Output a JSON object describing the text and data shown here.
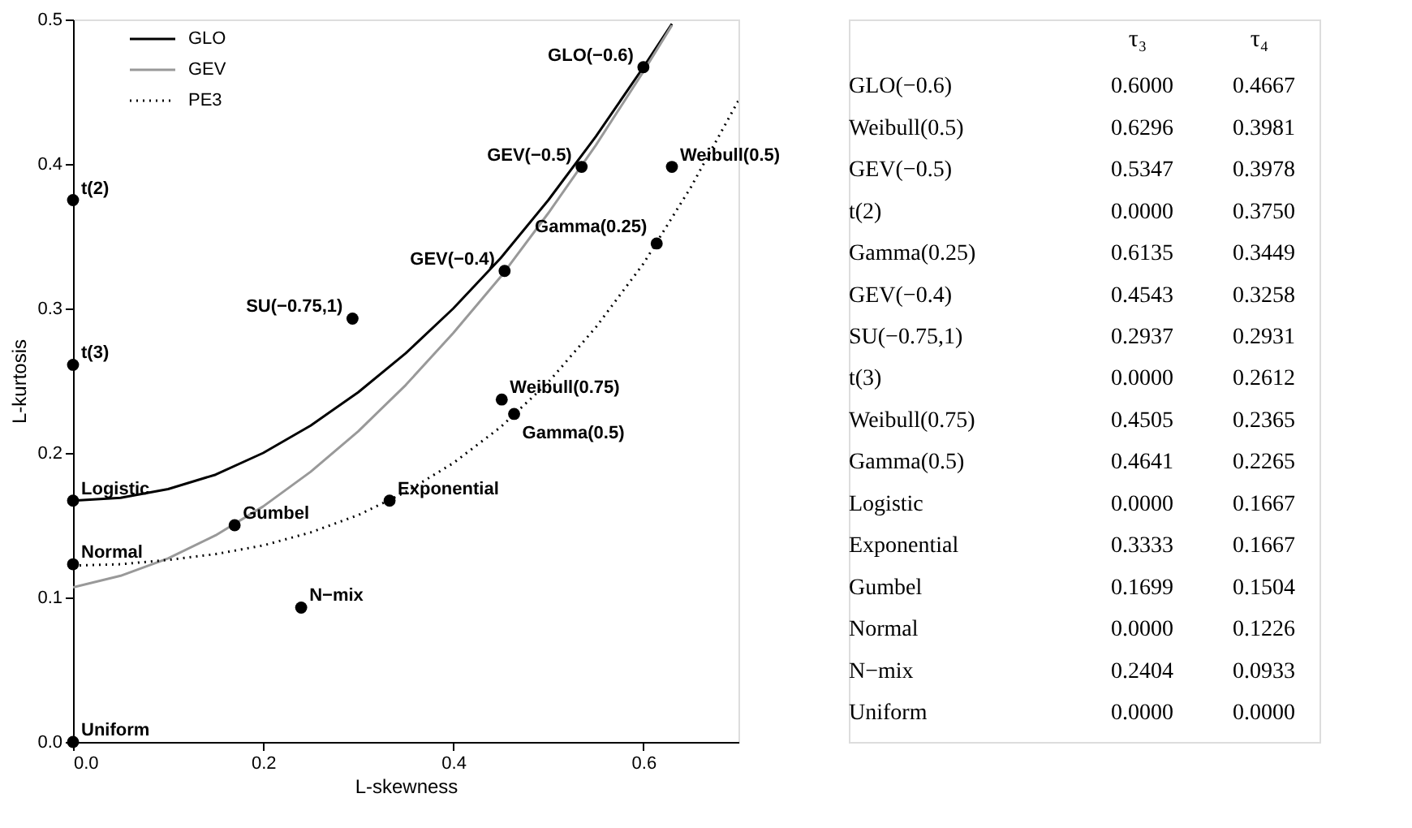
{
  "chart_data": [
    {
      "type": "scatter",
      "xlabel": "L-skewness",
      "ylabel": "L-kurtosis",
      "xlim": [
        0,
        0.7
      ],
      "ylim": [
        0,
        0.5
      ],
      "xticks": [
        {
          "value": 0,
          "label": "0.0"
        },
        0.2,
        0.4,
        0.6
      ],
      "yticks": [
        {
          "value": 0,
          "label": "0.0"
        },
        0.1,
        0.2,
        0.3,
        0.4,
        0.5
      ],
      "grid": false,
      "legend": "top left",
      "series": [
        {
          "name": "GLO",
          "type": "line",
          "color": "#000000",
          "line_style": "solid",
          "x": [
            0,
            0.05,
            0.1,
            0.15,
            0.2,
            0.25,
            0.3,
            0.35,
            0.4,
            0.45,
            0.5,
            0.55,
            0.6,
            0.63
          ],
          "values": [
            0.167,
            0.169,
            0.175,
            0.185,
            0.2,
            0.219,
            0.242,
            0.269,
            0.3,
            0.335,
            0.375,
            0.419,
            0.467,
            0.497
          ]
        },
        {
          "name": "GEV",
          "type": "line",
          "color": "#999999",
          "line_style": "solid",
          "x": [
            0,
            0.05,
            0.1,
            0.15,
            0.2,
            0.25,
            0.3,
            0.35,
            0.4,
            0.45,
            0.5,
            0.55,
            0.6,
            0.63
          ],
          "values": [
            0.107,
            0.115,
            0.127,
            0.143,
            0.163,
            0.187,
            0.215,
            0.247,
            0.283,
            0.322,
            0.366,
            0.413,
            0.464,
            0.496
          ]
        },
        {
          "name": "PE3",
          "type": "line",
          "color": "#000000",
          "line_style": "dotted",
          "x": [
            0,
            0.05,
            0.1,
            0.15,
            0.2,
            0.25,
            0.3,
            0.35,
            0.4,
            0.45,
            0.5,
            0.55,
            0.6,
            0.65,
            0.7
          ],
          "values": [
            0.122,
            0.123,
            0.126,
            0.13,
            0.136,
            0.145,
            0.157,
            0.173,
            0.193,
            0.218,
            0.249,
            0.287,
            0.331,
            0.384,
            0.444
          ]
        },
        {
          "color": "#000000",
          "marker": "circle",
          "x": [
            0.6,
            0.63,
            0.535,
            0.0,
            0.614,
            0.454,
            0.294,
            0.0,
            0.451,
            0.464,
            0.0,
            0.333,
            0.17,
            0.0,
            0.24,
            0.0
          ],
          "values": [
            0.467,
            0.398,
            0.398,
            0.375,
            0.345,
            0.326,
            0.293,
            0.261,
            0.237,
            0.227,
            0.167,
            0.167,
            0.15,
            0.123,
            0.093,
            0.0
          ]
        }
      ],
      "annotations": [
        {
          "text": "GLO(−0.6)",
          "x": 0.6,
          "y": 0.467
        },
        {
          "text": "Weibull(0.5)",
          "x": 0.63,
          "y": 0.398
        },
        {
          "text": "GEV(−0.5)",
          "x": 0.535,
          "y": 0.398
        },
        {
          "text": "t(2)",
          "x": 0.0,
          "y": 0.375
        },
        {
          "text": "Gamma(0.25)",
          "x": 0.614,
          "y": 0.345
        },
        {
          "text": "GEV(−0.4)",
          "x": 0.454,
          "y": 0.326
        },
        {
          "text": "SU(−0.75,1)",
          "x": 0.294,
          "y": 0.293
        },
        {
          "text": "t(3)",
          "x": 0.0,
          "y": 0.261
        },
        {
          "text": "Weibull(0.75)",
          "x": 0.451,
          "y": 0.237
        },
        {
          "text": "Gamma(0.5)",
          "x": 0.464,
          "y": 0.227
        },
        {
          "text": "Logistic",
          "x": 0.0,
          "y": 0.167
        },
        {
          "text": "Exponential",
          "x": 0.333,
          "y": 0.167
        },
        {
          "text": "Gumbel",
          "x": 0.17,
          "y": 0.15
        },
        {
          "text": "Normal",
          "x": 0.0,
          "y": 0.123
        },
        {
          "text": "N−mix",
          "x": 0.24,
          "y": 0.093
        },
        {
          "text": "Uniform",
          "x": 0.0,
          "y": 0.0
        }
      ]
    },
    {
      "type": "other",
      "data_labels": true,
      "categories": [
        "GLO(−0.6)",
        "Weibull(0.5)",
        "GEV(−0.5)",
        "t(2)",
        "Gamma(0.25)",
        "GEV(−0.4)",
        "SU(−0.75,1)",
        "t(3)",
        "Weibull(0.75)",
        "Gamma(0.5)",
        "Logistic",
        "Exponential",
        "Gumbel",
        "Normal",
        "N−mix",
        "Uniform"
      ],
      "series": [
        {
          "name": "τ₃",
          "values": [
            0.6,
            0.6296,
            0.5347,
            0.0,
            0.6135,
            0.4543,
            0.2937,
            0.0,
            0.4505,
            0.4641,
            0.0,
            0.3333,
            0.1699,
            0.0,
            0.2404,
            0.0
          ],
          "value_labels": [
            "0.6000",
            "0.6296",
            "0.5347",
            "0.0000",
            "0.6135",
            "0.4543",
            "0.2937",
            "0.0000",
            "0.4505",
            "0.4641",
            "0.0000",
            "0.3333",
            "0.1699",
            "0.0000",
            "0.2404",
            "0.0000"
          ]
        },
        {
          "name": "τ₄",
          "values": [
            0.4667,
            0.3981,
            0.3978,
            0.375,
            0.3449,
            0.3258,
            0.2931,
            0.2612,
            0.2365,
            0.2265,
            0.1667,
            0.1667,
            0.1504,
            0.1226,
            0.0933,
            0.0
          ],
          "value_labels": [
            "0.4667",
            "0.3981",
            "0.3978",
            "0.3750",
            "0.3449",
            "0.3258",
            "0.2931",
            "0.2612",
            "0.2365",
            "0.2265",
            "0.1667",
            "0.1667",
            "0.1504",
            "0.1226",
            "0.0933",
            "0.0000"
          ]
        }
      ]
    }
  ]
}
